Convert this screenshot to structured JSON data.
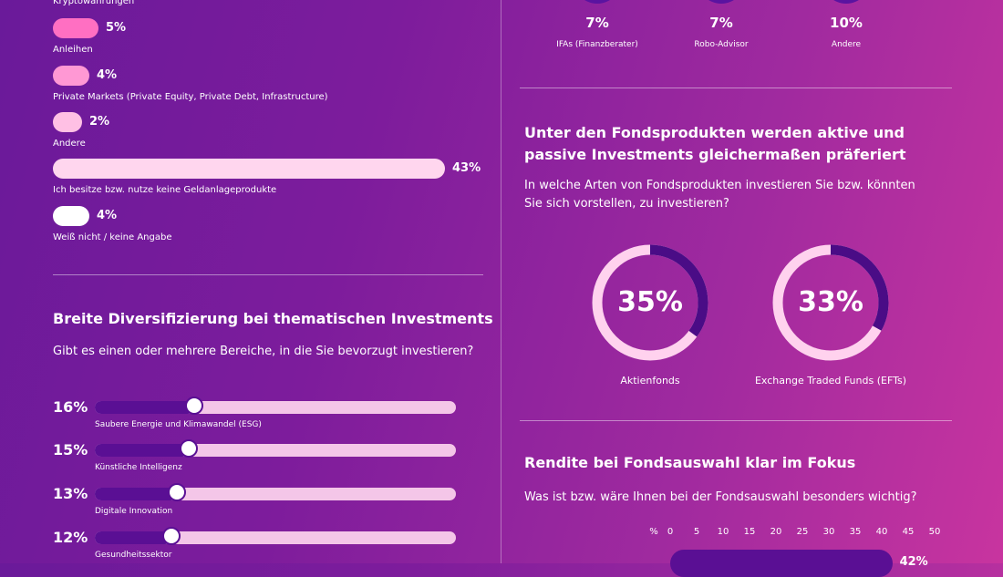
{
  "colors": {
    "dark_purple": "#5a0f94",
    "pink_strong": "#ff6fc2",
    "pink_mid": "#ff98d4",
    "pink_light": "#ffc8e8",
    "white": "#ffffff",
    "track": "#f4c6e8"
  },
  "chart_data": [
    {
      "type": "bar",
      "orientation": "horizontal",
      "categories": [
        "Kryptowährungen",
        "Anleihen",
        "Private Markets (Private Equity, Private Debt, Infrastructure)",
        "Andere",
        "Ich besitze bzw. nutze keine Geldanlageprodukte",
        "Weiß nicht / keine Angabe"
      ],
      "values": [
        null,
        5,
        4,
        2,
        43,
        4
      ],
      "value_labels": [
        "",
        "5%",
        "4%",
        "2%",
        "43%",
        "4%"
      ],
      "colors": [
        "#ff6fc2",
        "#ff6fc2",
        "#ff98d4",
        "#ffc0e4",
        "#ffd6ee",
        "#ffffff"
      ]
    },
    {
      "type": "bar",
      "orientation": "horizontal",
      "title": "Breite Diversifizierung bei thematischen Investments",
      "subtitle": "Gibt es einen oder mehrere Bereiche, in die Sie bevorzugt investieren?",
      "categories": [
        "Saubere Energie und Klimawandel (ESG)",
        "Künstliche Intelligenz",
        "Digitale Innovation",
        "Gesundheitssektor"
      ],
      "values": [
        16,
        15,
        13,
        12
      ],
      "value_labels": [
        "16%",
        "15%",
        "13%",
        "12%"
      ],
      "xlim": [
        0,
        100
      ]
    },
    {
      "type": "pie",
      "categories": [
        "IFAs (Finanzberater)",
        "Robo-Advisor",
        "Andere"
      ],
      "values": [
        7,
        7,
        10
      ],
      "value_labels": [
        "7%",
        "7%",
        "10%"
      ]
    },
    {
      "type": "pie",
      "title": "Unter den Fondsprodukten werden aktive und passive Investments gleichermaßen präferiert",
      "subtitle": "In welche Arten von Fondsprodukten investieren Sie bzw. könnten Sie sich vorstellen, zu investieren?",
      "categories": [
        "Aktienfonds",
        "Exchange Traded Funds (EFTs)"
      ],
      "values": [
        35,
        33
      ],
      "value_labels": [
        "35%",
        "33%"
      ]
    },
    {
      "type": "bar",
      "orientation": "horizontal",
      "title": "Rendite bei Fondsauswahl klar im Fokus",
      "subtitle": "Was ist bzw. wäre Ihnen bei der Fondsauswahl besonders wichtig?",
      "axis_unit": "%",
      "ticks": [
        0,
        5,
        10,
        15,
        20,
        25,
        30,
        35,
        40,
        45,
        50
      ],
      "xlim": [
        0,
        50
      ],
      "values": [
        42
      ],
      "value_labels": [
        "42%"
      ]
    }
  ],
  "left": {
    "top_partial_label": "Kryptowährungen"
  }
}
